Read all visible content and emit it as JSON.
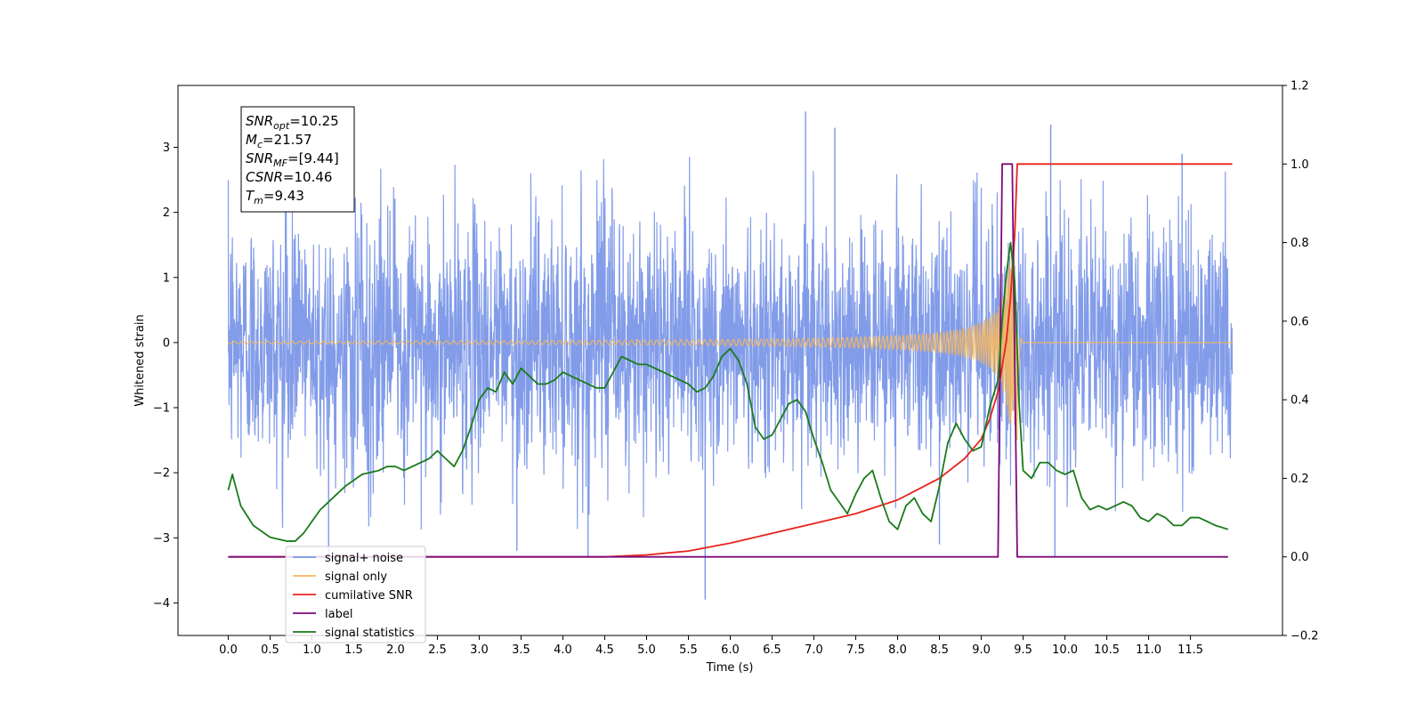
{
  "chart_data": {
    "type": "line",
    "title": "",
    "xlabel": "Time (s)",
    "ylabel_left": "Whitened strain",
    "ylabel_right": "",
    "xlim": [
      -0.6,
      12.6
    ],
    "ylim_left": [
      -4.5,
      3.95
    ],
    "ylim_right": [
      -0.2,
      1.2
    ],
    "x_ticks": [
      0.0,
      0.5,
      1.0,
      1.5,
      2.0,
      2.5,
      3.0,
      3.5,
      4.0,
      4.5,
      5.0,
      5.5,
      6.0,
      6.5,
      7.0,
      7.5,
      8.0,
      8.5,
      9.0,
      9.5,
      10.0,
      10.5,
      11.0,
      11.5
    ],
    "x_tick_labels": [
      "0.0",
      "0.5",
      "1.0",
      "1.5",
      "2.0",
      "2.5",
      "3.0",
      "3.5",
      "4.0",
      "4.5",
      "5.0",
      "5.5",
      "6.0",
      "6.5",
      "7.0",
      "7.5",
      "8.0",
      "8.5",
      "9.0",
      "9.5",
      "10.0",
      "10.5",
      "11.0",
      "11.5"
    ],
    "y_left_ticks": [
      -4,
      -3,
      -2,
      -1,
      0,
      1,
      2,
      3
    ],
    "y_left_tick_labels": [
      "−4",
      "−3",
      "−2",
      "−1",
      "0",
      "1",
      "2",
      "3"
    ],
    "y_right_ticks": [
      -0.2,
      0.0,
      0.2,
      0.4,
      0.6,
      0.8,
      1.0,
      1.2
    ],
    "y_right_tick_labels": [
      "−0.2",
      "0.0",
      "0.2",
      "0.4",
      "0.6",
      "0.8",
      "1.0",
      "1.2"
    ],
    "grid": false,
    "legend_position": "lower-left",
    "annotation": {
      "lines": [
        {
          "main": "SNR",
          "sub": "opt",
          "rest": "=10.25"
        },
        {
          "main": "M",
          "sub": "c",
          "rest": "=21.57"
        },
        {
          "main": "SNR",
          "sub": "MF",
          "rest": "=[9.44]"
        },
        {
          "main": "CSNR",
          "sub": "",
          "rest": "=10.46"
        },
        {
          "main": "T",
          "sub": "m",
          "rest": "=9.43"
        }
      ]
    },
    "series": [
      {
        "name": "signal+ noise",
        "axis": "left",
        "color": "#7b97e8",
        "kind": "noise",
        "x_range": [
          0.0,
          12.0
        ],
        "envelope_typical": 1.6,
        "spikes": [
          {
            "x": 1.2,
            "y": -3.3
          },
          {
            "x": 4.3,
            "y": -3.3
          },
          {
            "x": 5.7,
            "y": -3.95
          },
          {
            "x": 6.9,
            "y": 3.55
          },
          {
            "x": 7.25,
            "y": 3.3
          },
          {
            "x": 9.83,
            "y": 3.35
          },
          {
            "x": 9.88,
            "y": -3.3
          },
          {
            "x": 11.4,
            "y": 2.9
          },
          {
            "x": 3.45,
            "y": -3.2
          },
          {
            "x": 8.5,
            "y": -3.1
          }
        ]
      },
      {
        "name": "signal only",
        "axis": "left",
        "color": "#f5b860",
        "kind": "chirp",
        "t_merger": 9.43,
        "x_range": [
          0.0,
          12.0
        ],
        "peak_amplitude": 1.5
      },
      {
        "name": "cumilative SNR",
        "axis": "right",
        "color": "#e8231c",
        "x": [
          0.0,
          4.5,
          5.0,
          5.5,
          6.0,
          6.5,
          7.0,
          7.5,
          8.0,
          8.5,
          8.8,
          9.0,
          9.1,
          9.2,
          9.3,
          9.35,
          9.4,
          9.43,
          12.0
        ],
        "y": [
          0.0,
          0.0,
          0.005,
          0.015,
          0.035,
          0.06,
          0.085,
          0.11,
          0.145,
          0.2,
          0.25,
          0.3,
          0.35,
          0.42,
          0.55,
          0.66,
          0.82,
          1.0,
          1.0
        ]
      },
      {
        "name": "label",
        "axis": "right",
        "color": "#7a0a7a",
        "x": [
          0.0,
          9.2,
          9.25,
          9.37,
          9.43,
          11.95
        ],
        "y": [
          0.0,
          0.0,
          1.0,
          1.0,
          0.0,
          0.0
        ]
      },
      {
        "name": "signal statistics",
        "axis": "right",
        "color": "#1a7a1a",
        "x": [
          0.0,
          0.05,
          0.15,
          0.3,
          0.5,
          0.7,
          0.8,
          0.9,
          1.0,
          1.1,
          1.2,
          1.3,
          1.4,
          1.6,
          1.8,
          1.9,
          2.0,
          2.1,
          2.2,
          2.4,
          2.5,
          2.6,
          2.7,
          2.8,
          2.9,
          3.0,
          3.1,
          3.2,
          3.3,
          3.4,
          3.5,
          3.6,
          3.7,
          3.8,
          3.9,
          4.0,
          4.1,
          4.2,
          4.3,
          4.4,
          4.5,
          4.6,
          4.7,
          4.8,
          4.9,
          5.0,
          5.1,
          5.2,
          5.3,
          5.4,
          5.5,
          5.6,
          5.7,
          5.8,
          5.9,
          6.0,
          6.1,
          6.2,
          6.3,
          6.4,
          6.5,
          6.6,
          6.7,
          6.8,
          6.9,
          7.0,
          7.1,
          7.2,
          7.3,
          7.4,
          7.5,
          7.6,
          7.7,
          7.8,
          7.9,
          8.0,
          8.1,
          8.2,
          8.3,
          8.4,
          8.5,
          8.6,
          8.7,
          8.8,
          8.9,
          9.0,
          9.1,
          9.2,
          9.25,
          9.3,
          9.35,
          9.4,
          9.45,
          9.5,
          9.6,
          9.7,
          9.8,
          9.9,
          10.0,
          10.1,
          10.2,
          10.3,
          10.4,
          10.5,
          10.6,
          10.7,
          10.8,
          10.9,
          11.0,
          11.1,
          11.2,
          11.3,
          11.4,
          11.5,
          11.6,
          11.7,
          11.8,
          11.95
        ],
        "y": [
          0.17,
          0.21,
          0.13,
          0.08,
          0.05,
          0.04,
          0.04,
          0.06,
          0.09,
          0.12,
          0.14,
          0.16,
          0.18,
          0.21,
          0.22,
          0.23,
          0.23,
          0.22,
          0.23,
          0.25,
          0.27,
          0.25,
          0.23,
          0.27,
          0.33,
          0.4,
          0.43,
          0.42,
          0.47,
          0.44,
          0.48,
          0.46,
          0.44,
          0.44,
          0.45,
          0.47,
          0.46,
          0.45,
          0.44,
          0.43,
          0.43,
          0.47,
          0.51,
          0.5,
          0.49,
          0.49,
          0.48,
          0.47,
          0.46,
          0.45,
          0.44,
          0.42,
          0.43,
          0.46,
          0.51,
          0.53,
          0.5,
          0.44,
          0.33,
          0.3,
          0.31,
          0.35,
          0.39,
          0.4,
          0.37,
          0.3,
          0.24,
          0.17,
          0.14,
          0.11,
          0.16,
          0.2,
          0.22,
          0.15,
          0.09,
          0.07,
          0.13,
          0.15,
          0.11,
          0.09,
          0.18,
          0.29,
          0.34,
          0.3,
          0.27,
          0.28,
          0.38,
          0.45,
          0.6,
          0.72,
          0.8,
          0.7,
          0.4,
          0.22,
          0.2,
          0.24,
          0.24,
          0.22,
          0.21,
          0.22,
          0.15,
          0.12,
          0.13,
          0.12,
          0.13,
          0.14,
          0.13,
          0.1,
          0.09,
          0.11,
          0.1,
          0.08,
          0.08,
          0.1,
          0.1,
          0.09,
          0.08,
          0.07
        ]
      }
    ]
  },
  "legend": {
    "items": [
      {
        "label": "signal+ noise",
        "color": "#7b97e8"
      },
      {
        "label": "signal only",
        "color": "#f5b860"
      },
      {
        "label": "cumilative SNR",
        "color": "#e8231c"
      },
      {
        "label": "label",
        "color": "#7a0a7a"
      },
      {
        "label": "signal statistics",
        "color": "#1a7a1a"
      }
    ]
  }
}
